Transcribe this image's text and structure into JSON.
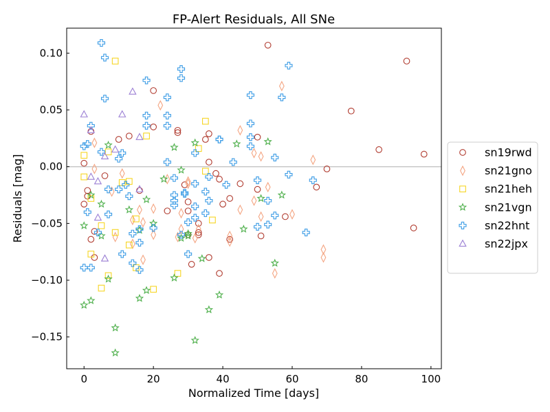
{
  "chart_data": {
    "type": "scatter",
    "title": "FP-Alert Residuals, All SNe",
    "xlabel": "Normalized Time [days]",
    "ylabel": "Residuals [mag]",
    "xlim": [
      -5,
      103
    ],
    "ylim": [
      -0.178,
      0.122
    ],
    "xticks": [
      0,
      20,
      40,
      60,
      80,
      100
    ],
    "xtick_labels": [
      "0",
      "20",
      "40",
      "60",
      "80",
      "100"
    ],
    "yticks": [
      -0.15,
      -0.1,
      -0.05,
      0.0,
      0.05,
      0.1
    ],
    "ytick_labels": [
      "−0.15",
      "−0.10",
      "−0.05",
      "0.00",
      "0.05",
      "0.10"
    ],
    "reference_line": 0,
    "legend_position": "right",
    "series": [
      {
        "name": "sn19rwd",
        "marker": "circle",
        "color": "#b03a2e",
        "points": [
          [
            0,
            0.003
          ],
          [
            0,
            -0.033
          ],
          [
            1,
            -0.021
          ],
          [
            1,
            -0.026
          ],
          [
            2,
            -0.064
          ],
          [
            2,
            0.031
          ],
          [
            3,
            -0.057
          ],
          [
            3,
            -0.08
          ],
          [
            6,
            -0.008
          ],
          [
            10,
            0.024
          ],
          [
            13,
            0.027
          ],
          [
            16,
            -0.021
          ],
          [
            20,
            0.035
          ],
          [
            20,
            0.067
          ],
          [
            24,
            -0.039
          ],
          [
            27,
            0.03
          ],
          [
            27,
            0.032
          ],
          [
            29,
            -0.016
          ],
          [
            30,
            -0.031
          ],
          [
            30,
            -0.039
          ],
          [
            30,
            -0.06
          ],
          [
            31,
            -0.086
          ],
          [
            33,
            -0.05
          ],
          [
            33,
            -0.058
          ],
          [
            33,
            -0.06
          ],
          [
            35,
            0.024
          ],
          [
            36,
            0.029
          ],
          [
            36,
            0.004
          ],
          [
            36,
            -0.08
          ],
          [
            38,
            -0.006
          ],
          [
            39,
            -0.011
          ],
          [
            39,
            -0.094
          ],
          [
            40,
            -0.033
          ],
          [
            42,
            -0.028
          ],
          [
            42,
            -0.064
          ],
          [
            45,
            -0.015
          ],
          [
            50,
            0.026
          ],
          [
            50,
            -0.02
          ],
          [
            51,
            -0.061
          ],
          [
            53,
            0.107
          ],
          [
            58,
            -0.044
          ],
          [
            67,
            -0.018
          ],
          [
            70,
            -0.002
          ],
          [
            77,
            0.049
          ],
          [
            85,
            0.015
          ],
          [
            93,
            0.093
          ],
          [
            95,
            -0.054
          ],
          [
            98,
            0.011
          ]
        ]
      },
      {
        "name": "sn21gno",
        "marker": "diamond",
        "color": "#f4a582",
        "points": [
          [
            3,
            0.021
          ],
          [
            3,
            -0.002
          ],
          [
            8,
            -0.022
          ],
          [
            9,
            -0.062
          ],
          [
            11,
            -0.006
          ],
          [
            14,
            -0.047
          ],
          [
            14,
            -0.068
          ],
          [
            16,
            -0.038
          ],
          [
            17,
            -0.049
          ],
          [
            17,
            -0.082
          ],
          [
            20,
            -0.037
          ],
          [
            20,
            -0.06
          ],
          [
            22,
            0.054
          ],
          [
            24,
            -0.011
          ],
          [
            27,
            -0.062
          ],
          [
            28,
            -0.041
          ],
          [
            28,
            -0.055
          ],
          [
            30,
            -0.013
          ],
          [
            30,
            -0.015
          ],
          [
            32,
            -0.063
          ],
          [
            33,
            -0.055
          ],
          [
            42,
            -0.061
          ],
          [
            42,
            -0.066
          ],
          [
            45,
            0.032
          ],
          [
            45,
            -0.038
          ],
          [
            49,
            0.012
          ],
          [
            49,
            -0.03
          ],
          [
            51,
            0.009
          ],
          [
            51,
            -0.044
          ],
          [
            53,
            -0.018
          ],
          [
            55,
            -0.094
          ],
          [
            57,
            0.071
          ],
          [
            60,
            -0.042
          ],
          [
            66,
            0.006
          ],
          [
            69,
            -0.073
          ],
          [
            69,
            -0.08
          ]
        ]
      },
      {
        "name": "sn21heh",
        "marker": "square",
        "color": "#f6d523",
        "points": [
          [
            0,
            0.01
          ],
          [
            0,
            -0.009
          ],
          [
            2,
            -0.028
          ],
          [
            2,
            -0.077
          ],
          [
            5,
            -0.052
          ],
          [
            5,
            -0.107
          ],
          [
            7,
            -0.096
          ],
          [
            7,
            0.013
          ],
          [
            9,
            0.093
          ],
          [
            9,
            -0.058
          ],
          [
            11,
            -0.014
          ],
          [
            13,
            -0.013
          ],
          [
            13,
            -0.069
          ],
          [
            15,
            -0.046
          ],
          [
            15,
            -0.089
          ],
          [
            18,
            0.027
          ],
          [
            20,
            -0.108
          ],
          [
            27,
            -0.094
          ],
          [
            33,
            0.016
          ],
          [
            35,
            0.04
          ],
          [
            35,
            -0.004
          ],
          [
            37,
            -0.047
          ]
        ]
      },
      {
        "name": "sn21vgn",
        "marker": "star",
        "color": "#4daf4a",
        "points": [
          [
            0,
            -0.052
          ],
          [
            0,
            -0.122
          ],
          [
            2,
            -0.025
          ],
          [
            2,
            -0.118
          ],
          [
            5,
            -0.033
          ],
          [
            5,
            -0.061
          ],
          [
            7,
            0.019
          ],
          [
            7,
            -0.099
          ],
          [
            9,
            -0.142
          ],
          [
            9,
            -0.164
          ],
          [
            13,
            -0.038
          ],
          [
            16,
            -0.056
          ],
          [
            16,
            -0.116
          ],
          [
            18,
            -0.029
          ],
          [
            18,
            -0.109
          ],
          [
            20,
            -0.05
          ],
          [
            23,
            -0.011
          ],
          [
            26,
            0.017
          ],
          [
            26,
            -0.098
          ],
          [
            28,
            -0.003
          ],
          [
            28,
            -0.063
          ],
          [
            30,
            -0.059
          ],
          [
            30,
            -0.061
          ],
          [
            32,
            0.021
          ],
          [
            32,
            -0.153
          ],
          [
            34,
            -0.081
          ],
          [
            36,
            -0.126
          ],
          [
            39,
            -0.113
          ],
          [
            44,
            0.02
          ],
          [
            46,
            -0.055
          ],
          [
            51,
            -0.028
          ],
          [
            53,
            0.022
          ],
          [
            55,
            -0.085
          ],
          [
            57,
            -0.025
          ]
        ]
      },
      {
        "name": "sn22hnt",
        "marker": "plus",
        "color": "#3a9be5",
        "points": [
          [
            0,
            0.018
          ],
          [
            0,
            -0.089
          ],
          [
            1,
            0.02
          ],
          [
            1,
            -0.04
          ],
          [
            2,
            0.036
          ],
          [
            2,
            -0.089
          ],
          [
            4,
            -0.058
          ],
          [
            5,
            0.109
          ],
          [
            5,
            0.013
          ],
          [
            6,
            0.096
          ],
          [
            6,
            0.06
          ],
          [
            7,
            -0.02
          ],
          [
            7,
            -0.042
          ],
          [
            10,
            0.007
          ],
          [
            10,
            -0.02
          ],
          [
            11,
            0.012
          ],
          [
            11,
            -0.077
          ],
          [
            12,
            -0.016
          ],
          [
            13,
            -0.026
          ],
          [
            14,
            -0.059
          ],
          [
            14,
            -0.085
          ],
          [
            16,
            -0.055
          ],
          [
            16,
            -0.067
          ],
          [
            16,
            -0.091
          ],
          [
            18,
            0.076
          ],
          [
            18,
            0.045
          ],
          [
            18,
            0.036
          ],
          [
            20,
            -0.054
          ],
          [
            24,
            0.061
          ],
          [
            24,
            0.045
          ],
          [
            24,
            0.036
          ],
          [
            24,
            0.004
          ],
          [
            26,
            -0.01
          ],
          [
            26,
            -0.025
          ],
          [
            26,
            -0.03
          ],
          [
            26,
            -0.034
          ],
          [
            28,
            0.086
          ],
          [
            28,
            0.078
          ],
          [
            28,
            -0.06
          ],
          [
            29,
            -0.023
          ],
          [
            29,
            -0.024
          ],
          [
            30,
            -0.049
          ],
          [
            30,
            -0.077
          ],
          [
            32,
            0.012
          ],
          [
            32,
            -0.015
          ],
          [
            32,
            -0.035
          ],
          [
            32,
            -0.045
          ],
          [
            35,
            -0.022
          ],
          [
            35,
            -0.041
          ],
          [
            36,
            -0.009
          ],
          [
            36,
            -0.03
          ],
          [
            39,
            0.024
          ],
          [
            39,
            0.024
          ],
          [
            41,
            -0.016
          ],
          [
            43,
            0.004
          ],
          [
            48,
            0.063
          ],
          [
            48,
            0.038
          ],
          [
            48,
            0.026
          ],
          [
            48,
            0.018
          ],
          [
            50,
            -0.012
          ],
          [
            50,
            -0.053
          ],
          [
            53,
            -0.03
          ],
          [
            53,
            -0.051
          ],
          [
            55,
            0.008
          ],
          [
            55,
            -0.043
          ],
          [
            57,
            0.061
          ],
          [
            59,
            0.089
          ],
          [
            59,
            -0.007
          ],
          [
            64,
            -0.058
          ],
          [
            66,
            -0.012
          ]
        ]
      },
      {
        "name": "sn22jpx",
        "marker": "triangle",
        "color": "#9b7fd4",
        "points": [
          [
            0,
            0.046
          ],
          [
            2,
            0.032
          ],
          [
            2,
            -0.009
          ],
          [
            4,
            -0.013
          ],
          [
            4,
            -0.045
          ],
          [
            6,
            0.009
          ],
          [
            6,
            -0.081
          ],
          [
            9,
            0.015
          ],
          [
            11,
            0.046
          ],
          [
            14,
            0.066
          ],
          [
            16,
            0.026
          ],
          [
            16,
            -0.02
          ]
        ]
      }
    ]
  }
}
